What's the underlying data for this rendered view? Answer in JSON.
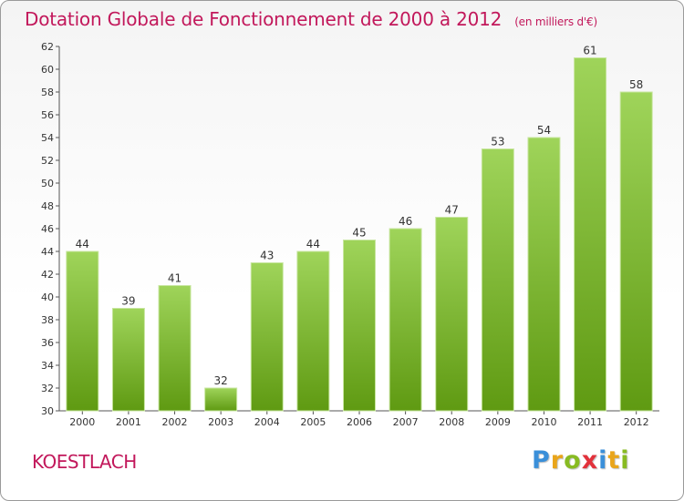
{
  "title": "Dotation Globale de Fonctionnement de 2000 à 2012",
  "subtitle": "(en milliers d'€)",
  "commune": "KOESTLACH",
  "logo": {
    "letters": [
      "P",
      "r",
      "o",
      "x",
      "i",
      "t",
      "i"
    ],
    "colors": [
      "#3a8fd9",
      "#e9a51b",
      "#88bb22",
      "#e2313b",
      "#3a8fd9",
      "#e9a51b",
      "#88bb22"
    ]
  },
  "chart_data": {
    "type": "bar",
    "categories": [
      "2000",
      "2001",
      "2002",
      "2003",
      "2004",
      "2005",
      "2006",
      "2007",
      "2008",
      "2009",
      "2010",
      "2011",
      "2012"
    ],
    "values": [
      44,
      39,
      41,
      32,
      43,
      44,
      45,
      46,
      47,
      53,
      54,
      61,
      58
    ],
    "ylim": [
      30,
      62
    ],
    "yticks": [
      30,
      32,
      34,
      36,
      38,
      40,
      42,
      44,
      46,
      48,
      50,
      52,
      54,
      56,
      58,
      60,
      62
    ],
    "grid": false,
    "colors": {
      "bar_top": "#9fd45a",
      "bar_bottom": "#5f9a12",
      "axis": "#555555",
      "text": "#333333"
    }
  }
}
